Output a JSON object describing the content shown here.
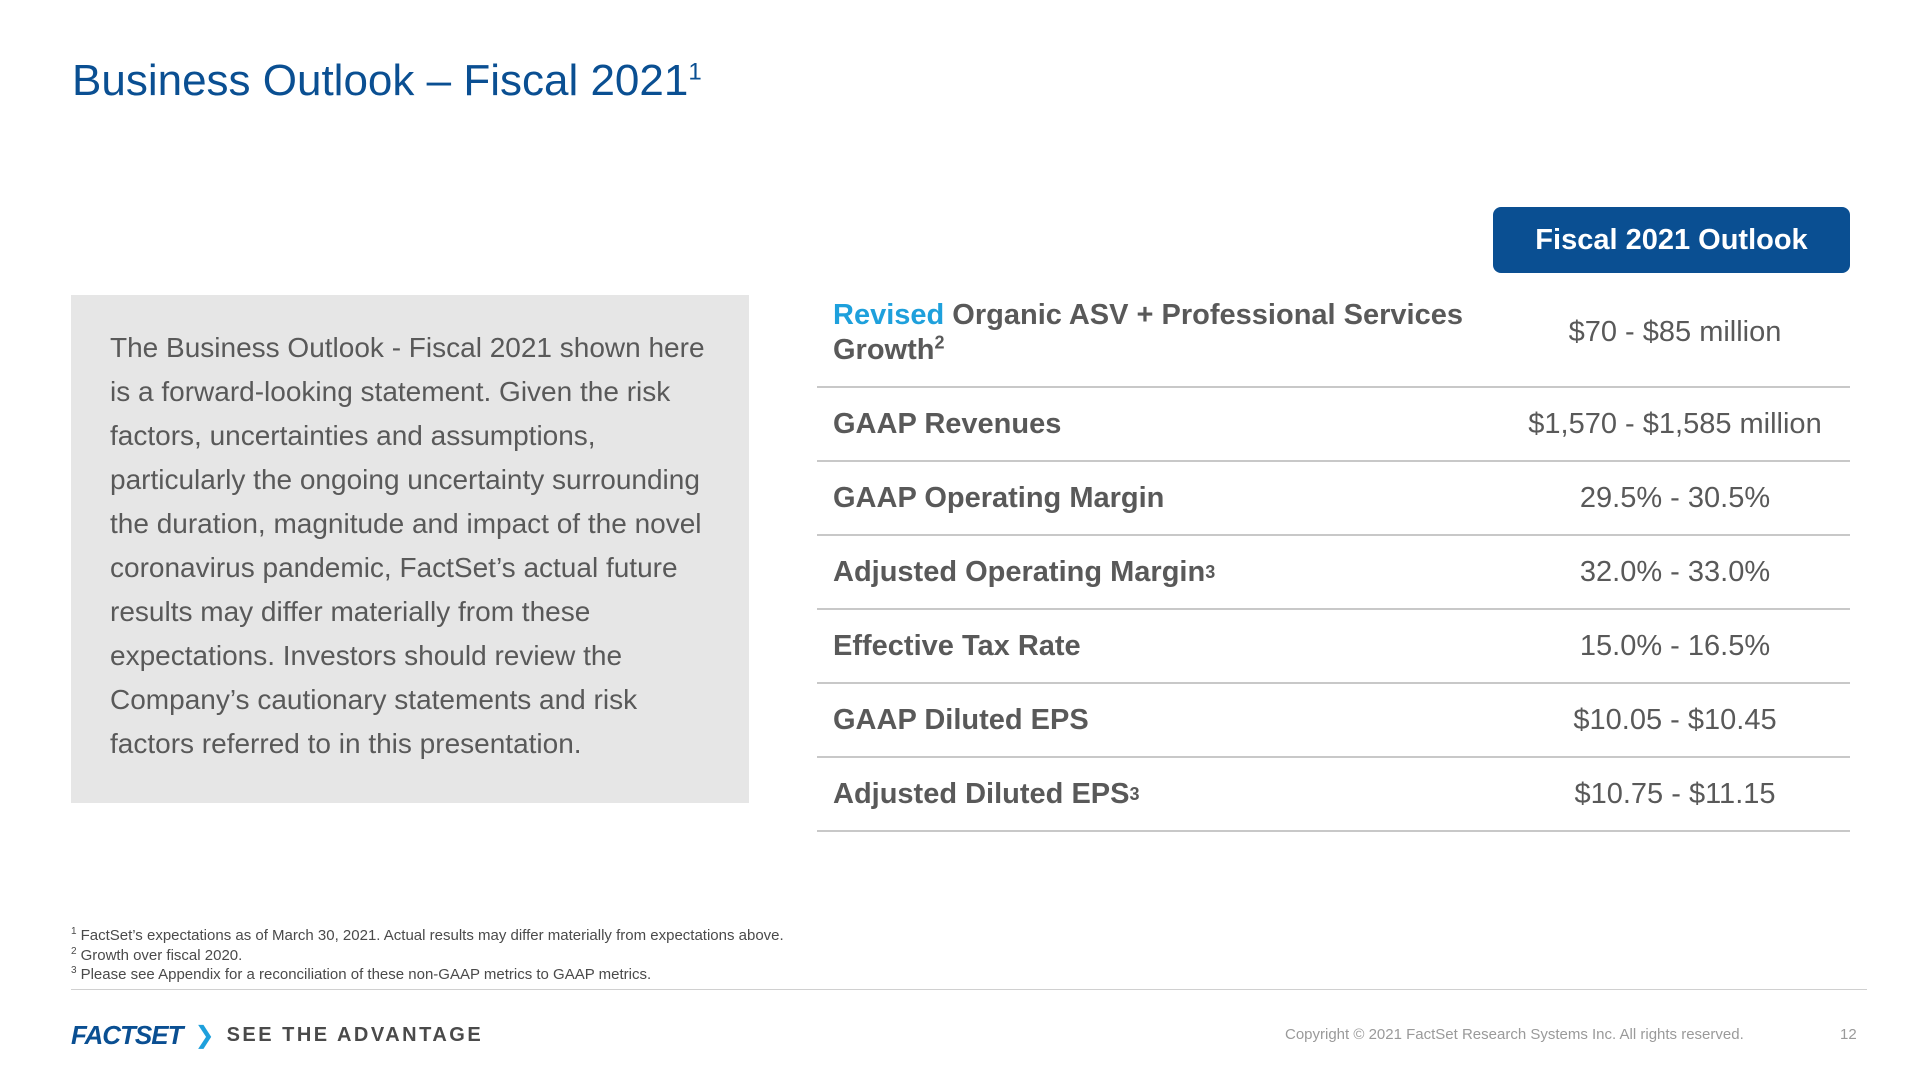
{
  "slide": {
    "title": "Business Outlook – Fiscal 2021",
    "title_footnote": "1",
    "page_number": "12"
  },
  "disclaimer": {
    "text": "The Business Outlook - Fiscal 2021 shown here is a forward-looking statement. Given the risk factors, uncertainties and assumptions, particularly the ongoing uncertainty surrounding the duration, magnitude and impact of the novel coronavirus pandemic, FactSet’s actual future results may differ materially from these expectations. Investors should review the Company’s cautionary statements and risk factors referred to in this presentation."
  },
  "outlook": {
    "header": "Fiscal 2021 Outlook",
    "rows": [
      {
        "prefix": "Revised",
        "label": "Organic ASV + Professional Services Growth",
        "footnote": "2",
        "value": "$70 - $85 million"
      },
      {
        "prefix": "",
        "label": "GAAP Revenues",
        "footnote": "",
        "value": "$1,570 - $1,585 million"
      },
      {
        "prefix": "",
        "label": "GAAP Operating Margin",
        "footnote": "",
        "value": "29.5% - 30.5%"
      },
      {
        "prefix": "",
        "label": "Adjusted Operating Margin",
        "footnote": "3",
        "value": "32.0% - 33.0%"
      },
      {
        "prefix": "",
        "label": "Effective Tax Rate",
        "footnote": "",
        "value": "15.0% - 16.5%"
      },
      {
        "prefix": "",
        "label": "GAAP Diluted EPS",
        "footnote": "",
        "value": "$10.05 - $10.45"
      },
      {
        "prefix": "",
        "label": "Adjusted Diluted EPS",
        "footnote": "3",
        "value": "$10.75 - $11.15"
      }
    ]
  },
  "footnotes": [
    {
      "marker": "1",
      "text": "FactSet’s expectations as of March 30, 2021. Actual results may differ materially from expectations above."
    },
    {
      "marker": "2",
      "text": "Growth over fiscal 2020."
    },
    {
      "marker": "3",
      "text": "Please see Appendix for a reconciliation of these non-GAAP metrics to GAAP metrics."
    }
  ],
  "footer": {
    "logo_text": "FACTSET",
    "logo_chevron": "❯",
    "tagline": "SEE THE ADVANTAGE",
    "copyright": "Copyright © 2021 FactSet Research Systems Inc. All rights reserved."
  },
  "colors": {
    "brand_blue": "#0a4f92",
    "accent_cyan": "#1ea0dc",
    "panel_gray": "#e6e6e6"
  }
}
